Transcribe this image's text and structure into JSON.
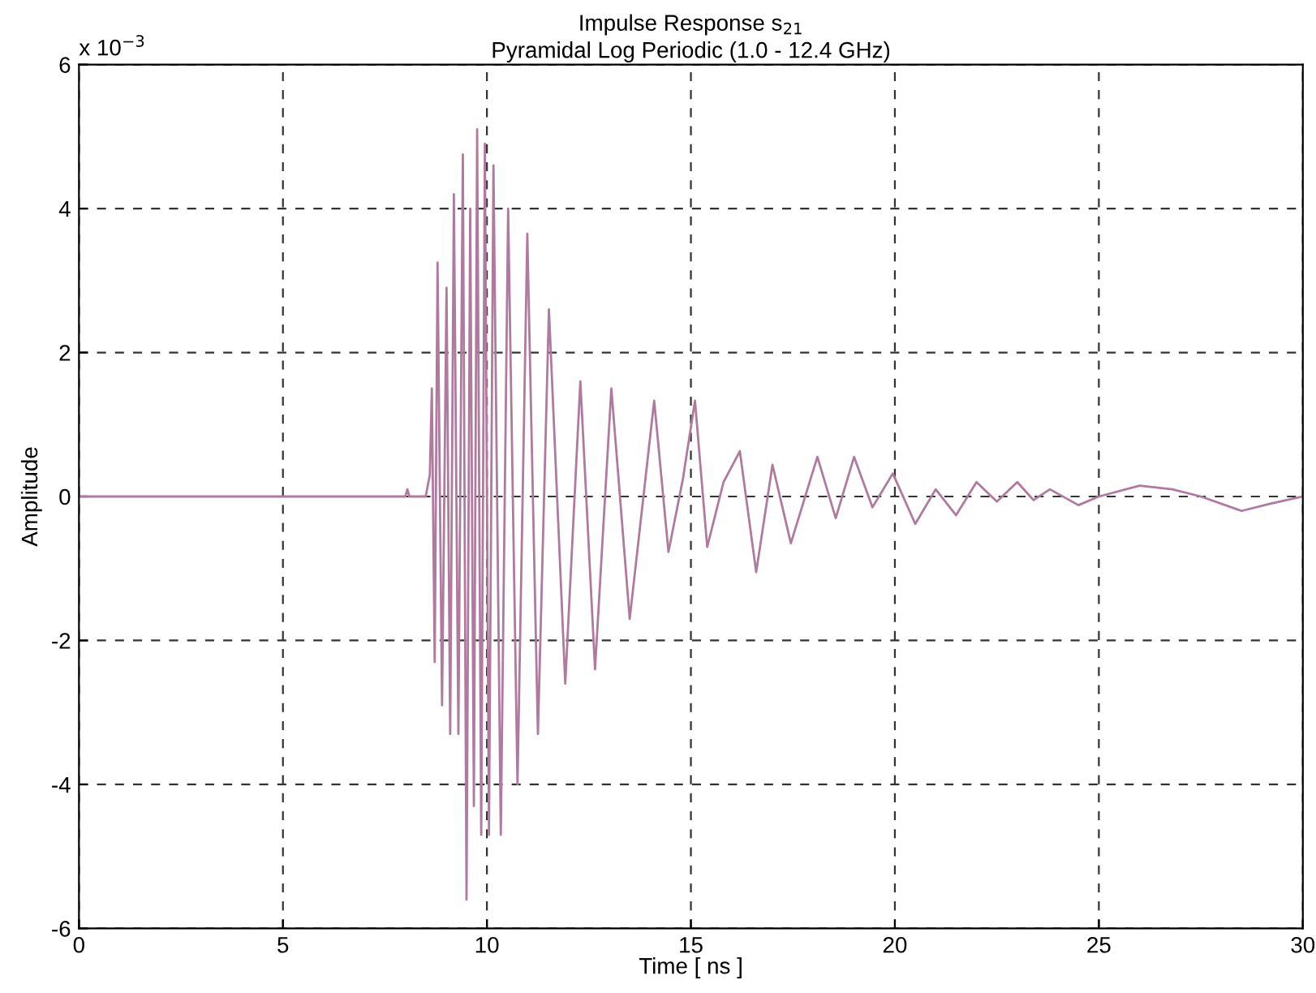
{
  "chart_data": {
    "type": "line",
    "title": "Impulse Response s$_{21}$",
    "subtitle": "Pyramidal Log Periodic (1.0 - 12.4 GHz)",
    "xlabel": "Time [ ns ]",
    "ylabel": "Amplitude",
    "annotations": [
      "x 10$^{−3}$"
    ],
    "series": [
      {
        "color": "#b07a9e",
        "x": [
          0,
          2,
          4,
          6,
          7.5,
          8.0,
          8.05,
          8.1,
          8.5,
          8.6,
          8.65,
          8.72,
          8.79,
          8.9,
          9.01,
          9.1,
          9.19,
          9.3,
          9.41,
          9.5,
          9.59,
          9.68,
          9.76,
          9.86,
          9.95,
          10.05,
          10.16,
          10.34,
          10.52,
          10.75,
          10.99,
          11.25,
          11.52,
          11.92,
          12.29,
          12.65,
          13.05,
          13.5,
          14.1,
          14.45,
          14.8,
          15.1,
          15.4,
          15.8,
          16.2,
          16.6,
          17.0,
          17.45,
          18.1,
          18.55,
          19.0,
          19.45,
          19.95,
          20.5,
          21.0,
          21.5,
          22.0,
          22.5,
          23.0,
          23.4,
          23.8,
          24.5,
          25.0,
          26.0,
          26.8,
          27.5,
          28.5,
          29.2,
          30.0
        ],
        "values": [
          0,
          0,
          0,
          0,
          0,
          0,
          0.1,
          0,
          0,
          0.3,
          1.5,
          -2.3,
          3.25,
          -2.9,
          2.9,
          -3.3,
          4.2,
          -3.3,
          4.75,
          -5.6,
          4.0,
          -4.3,
          5.1,
          -4.7,
          4.9,
          -4.7,
          4.6,
          -4.7,
          4.0,
          -4.0,
          3.65,
          -3.3,
          2.6,
          -2.6,
          1.6,
          -2.4,
          1.5,
          -1.7,
          1.33,
          -0.77,
          0.23,
          1.33,
          -0.7,
          0.2,
          0.63,
          -1.05,
          0.44,
          -0.65,
          0.55,
          -0.3,
          0.55,
          -0.15,
          0.32,
          -0.38,
          0.1,
          -0.26,
          0.2,
          -0.07,
          0.2,
          -0.05,
          0.1,
          -0.12,
          0,
          0.15,
          0.1,
          0,
          -0.2,
          -0.1,
          0
        ]
      }
    ],
    "xlim": [
      0,
      30
    ],
    "xticks": [
      0,
      5,
      10,
      15,
      20,
      25,
      30
    ],
    "ylim": [
      -6,
      6
    ],
    "yticks": [
      -6,
      -4,
      -2,
      0,
      2,
      4,
      6
    ],
    "grid": true,
    "line_style": "solid",
    "marker": "none"
  }
}
